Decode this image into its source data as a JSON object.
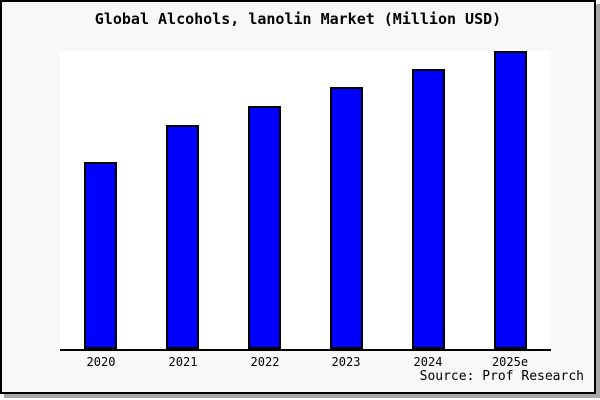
{
  "colors": {
    "bar_fill": "#0000ff",
    "bar_border": "#000000",
    "figure_bg": "#f8f8f8",
    "plot_bg": "#ffffff",
    "card_border": "#000000",
    "shadow": "#a8a8a8"
  },
  "source_note": "Source: Prof Research",
  "chart_data": {
    "type": "bar",
    "title": "Global Alcohols, lanolin Market (Million USD)",
    "categories": [
      "2020",
      "2021",
      "2022",
      "2023",
      "2024",
      "2025e"
    ],
    "values": [
      62.8,
      75.2,
      81.5,
      88.0,
      94.0,
      100.0
    ],
    "xlabel": "",
    "ylabel": "",
    "ylim": [
      0,
      100
    ],
    "grid": false,
    "legend": false,
    "axis_lines": "bottom-only",
    "value_note_units": "relative index, 2025e = 100 (no y-axis labels shown)"
  }
}
